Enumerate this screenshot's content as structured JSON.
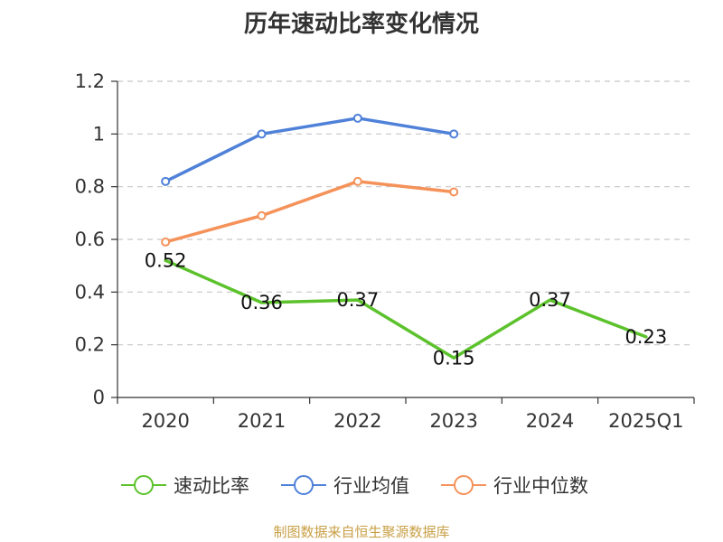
{
  "title": "历年速动比率变化情况",
  "source": "制图数据来自恒生聚源数据库",
  "chart_data": {
    "type": "line",
    "categories": [
      "2020",
      "2021",
      "2022",
      "2023",
      "2024",
      "2025Q1"
    ],
    "ylim": [
      0,
      1.2
    ],
    "y_ticks": [
      "0",
      "0.2",
      "0.4",
      "0.6",
      "0.8",
      "1",
      "1.2"
    ],
    "grid": true,
    "legend_position": "bottom",
    "series": [
      {
        "name": "速动比率",
        "color": "#5cc22c",
        "values": [
          0.52,
          0.36,
          0.37,
          0.15,
          0.37,
          0.23
        ],
        "labels": [
          "0.52",
          "0.36",
          "0.37",
          "0.15",
          "0.37",
          "0.23"
        ],
        "markers": false
      },
      {
        "name": "行业均值",
        "color": "#4f81d9",
        "values": [
          0.82,
          1.0,
          1.06,
          1.0,
          null,
          null
        ],
        "markers": true
      },
      {
        "name": "行业中位数",
        "color": "#f5925a",
        "values": [
          0.59,
          0.69,
          0.82,
          0.78,
          null,
          null
        ],
        "markers": true
      }
    ]
  }
}
